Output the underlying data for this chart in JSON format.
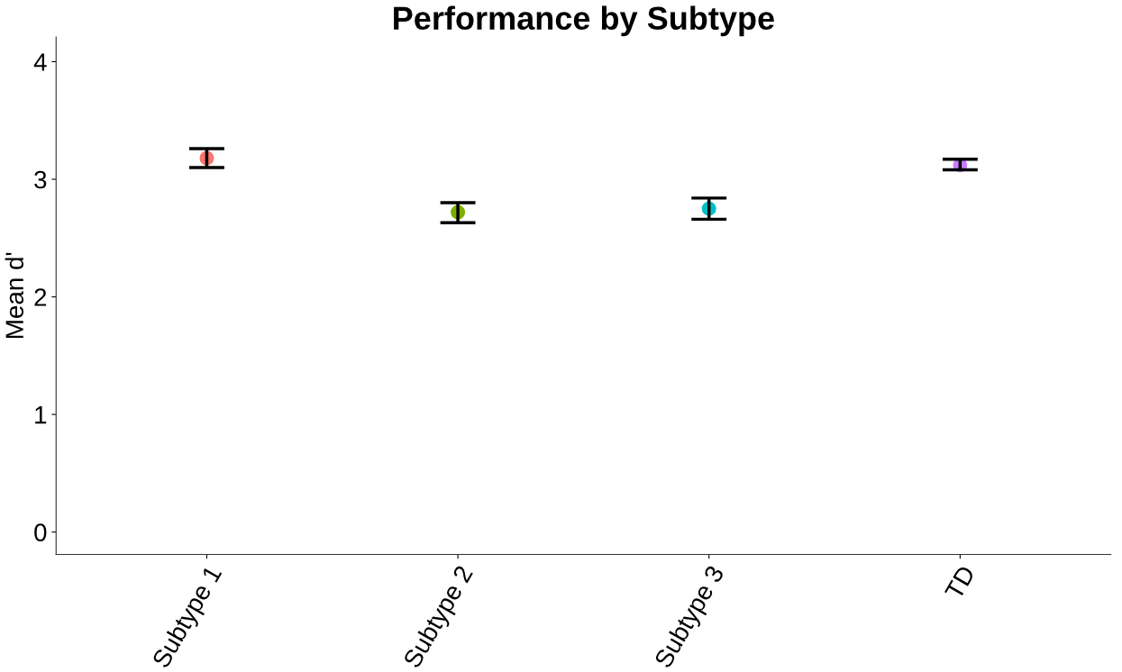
{
  "chart_data": {
    "type": "scatter",
    "title": "Performance by Subtype",
    "ylabel": "Mean d'",
    "categories": [
      "Subtype 1",
      "Subtype 2",
      "Subtype 3",
      "TD"
    ],
    "values": [
      3.18,
      2.72,
      2.75,
      3.12
    ],
    "errors": [
      [
        3.1,
        3.26
      ],
      [
        2.63,
        2.8
      ],
      [
        2.66,
        2.84
      ],
      [
        3.08,
        3.17
      ]
    ],
    "colors": [
      "#f8766d",
      "#7cae00",
      "#00bfc4",
      "#c77cff"
    ],
    "ylim": [
      -0.19,
      4.21
    ],
    "yticks": [
      0,
      1,
      2,
      3,
      4
    ],
    "grid": false,
    "legend": false,
    "marker": "circle"
  }
}
